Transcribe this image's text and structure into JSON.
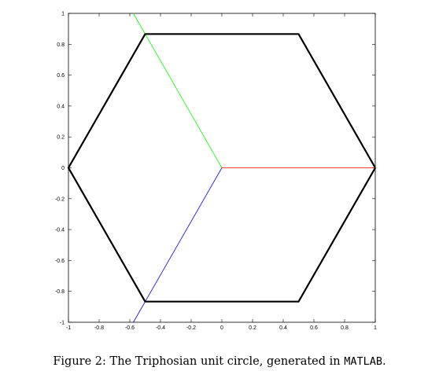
{
  "chart_data": {
    "type": "line",
    "title": "",
    "xlabel": "",
    "ylabel": "",
    "xlim": [
      -1,
      1
    ],
    "ylim": [
      -1,
      1
    ],
    "grid": false,
    "x_ticks": [
      -1,
      -0.8,
      -0.6,
      -0.4,
      -0.2,
      0,
      0.2,
      0.4,
      0.6,
      0.8,
      1
    ],
    "x_tick_labels": [
      "-1",
      "-0.8",
      "-0.6",
      "-0.4",
      "-0.2",
      "0",
      "0.2",
      "0.4",
      "0.6",
      "0.8",
      "1"
    ],
    "y_ticks": [
      -1,
      -0.8,
      -0.6,
      -0.4,
      -0.2,
      0,
      0.2,
      0.4,
      0.6,
      0.8,
      1
    ],
    "y_tick_labels": [
      "-1",
      "-0.8",
      "-0.6",
      "-0.4",
      "-0.2",
      "0",
      "0.2",
      "0.4",
      "0.6",
      "0.8",
      "1"
    ],
    "series": [
      {
        "color": "#000000",
        "points": [
          [
            1,
            0
          ],
          [
            0.5,
            0.866
          ],
          [
            -0.5,
            0.866
          ],
          [
            -1,
            0
          ],
          [
            -0.5,
            -0.866
          ],
          [
            0.5,
            -0.866
          ],
          [
            1,
            0
          ]
        ]
      },
      {
        "color": "#ff0000",
        "points": [
          [
            0,
            0
          ],
          [
            1,
            0
          ]
        ]
      },
      {
        "color": "#00ff00",
        "points": [
          [
            0,
            0
          ],
          [
            -0.577,
            1
          ]
        ]
      },
      {
        "color": "#0000ff",
        "points": [
          [
            0,
            0
          ],
          [
            -0.577,
            -1
          ]
        ]
      }
    ]
  },
  "caption": {
    "prefix": "Figure 2: The Triphosian unit circle, generated in ",
    "code": "MATLAB",
    "suffix": "."
  }
}
